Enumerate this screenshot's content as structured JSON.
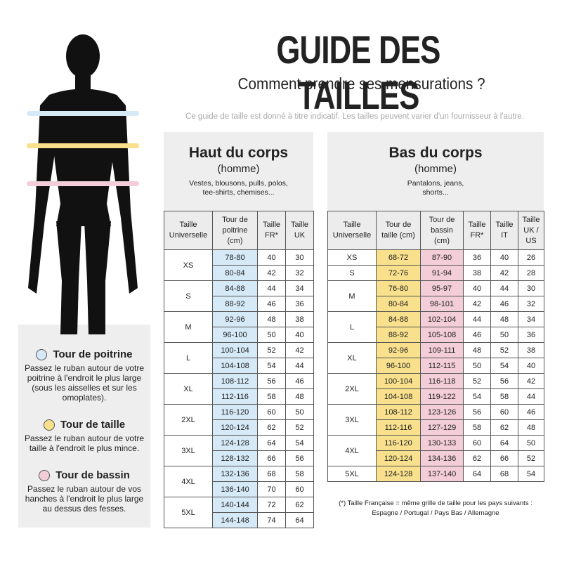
{
  "header": {
    "title": "GUIDE DES TAILLES",
    "subtitle": "Comment prendre ses mensurations ?",
    "note": "Ce guide de taille est donné à titre indicatif. Les tailles peuvent varier d'un fournisseur à l'autre."
  },
  "legend": {
    "items": [
      {
        "label": "Tour de poitrine",
        "text": "Passez le ruban autour de votre poitrine à l'endroit le plus large (sous les aisselles et sur les omoplates)."
      },
      {
        "label": "Tour de taille",
        "text": "Passez le ruban autour de votre taille à l'endroit le plus mince."
      },
      {
        "label": "Tour de bassin",
        "text": "Passez le ruban autour de vos hanches à l'endroit le plus large au dessus des fesses."
      }
    ]
  },
  "tables": [
    {
      "title": "Haut du corps",
      "subtitle": "(homme)",
      "description": "Vestes, blousons, pulls, polos, tee-shirts, chemises...",
      "columns": [
        "Taille Universelle",
        "Tour de poitrine (cm)",
        "Taille FR*",
        "Taille UK"
      ],
      "groups": [
        {
          "size": "XS",
          "rows": [
            [
              "78-80",
              40,
              30
            ],
            [
              "80-84",
              42,
              32
            ]
          ]
        },
        {
          "size": "S",
          "rows": [
            [
              "84-88",
              44,
              34
            ],
            [
              "88-92",
              46,
              36
            ]
          ]
        },
        {
          "size": "M",
          "rows": [
            [
              "92-96",
              48,
              38
            ],
            [
              "96-100",
              50,
              40
            ]
          ]
        },
        {
          "size": "L",
          "rows": [
            [
              "100-104",
              52,
              42
            ],
            [
              "104-108",
              54,
              44
            ]
          ]
        },
        {
          "size": "XL",
          "rows": [
            [
              "108-112",
              56,
              46
            ],
            [
              "112-116",
              58,
              48
            ]
          ]
        },
        {
          "size": "2XL",
          "rows": [
            [
              "116-120",
              60,
              50
            ],
            [
              "120-124",
              62,
              52
            ]
          ]
        },
        {
          "size": "3XL",
          "rows": [
            [
              "124-128",
              64,
              54
            ],
            [
              "128-132",
              66,
              56
            ]
          ]
        },
        {
          "size": "4XL",
          "rows": [
            [
              "132-136",
              68,
              58
            ],
            [
              "136-140",
              70,
              60
            ]
          ]
        },
        {
          "size": "5XL",
          "rows": [
            [
              "140-144",
              72,
              62
            ],
            [
              "144-148",
              74,
              64
            ]
          ]
        }
      ]
    },
    {
      "title": "Bas du corps",
      "subtitle": "(homme)",
      "description": "Pantalons, jeans, shorts...",
      "columns": [
        "Taille Universelle",
        "Tour de taille (cm)",
        "Tour de bassin (cm)",
        "Taille FR*",
        "Taille IT",
        "Taille UK / US"
      ],
      "groups": [
        {
          "size": "XS",
          "rows": [
            [
              "68-72",
              "87-90",
              36,
              40,
              26
            ]
          ]
        },
        {
          "size": "S",
          "rows": [
            [
              "72-76",
              "91-94",
              38,
              42,
              28
            ]
          ]
        },
        {
          "size": "M",
          "rows": [
            [
              "76-80",
              "95-97",
              40,
              44,
              30
            ],
            [
              "80-84",
              "98-101",
              42,
              46,
              32
            ]
          ]
        },
        {
          "size": "L",
          "rows": [
            [
              "84-88",
              "102-104",
              44,
              48,
              34
            ],
            [
              "88-92",
              "105-108",
              46,
              50,
              36
            ]
          ]
        },
        {
          "size": "XL",
          "rows": [
            [
              "92-96",
              "109-111",
              48,
              52,
              38
            ],
            [
              "96-100",
              "112-115",
              50,
              54,
              40
            ]
          ]
        },
        {
          "size": "2XL",
          "rows": [
            [
              "100-104",
              "116-118",
              52,
              56,
              42
            ],
            [
              "104-108",
              "119-122",
              54,
              58,
              44
            ]
          ]
        },
        {
          "size": "3XL",
          "rows": [
            [
              "108-112",
              "123-126",
              56,
              60,
              46
            ],
            [
              "112-116",
              "127-129",
              58,
              62,
              48
            ]
          ]
        },
        {
          "size": "4XL",
          "rows": [
            [
              "116-120",
              "130-133",
              60,
              64,
              50
            ],
            [
              "120-124",
              "134-136",
              62,
              66,
              52
            ]
          ]
        },
        {
          "size": "5XL",
          "rows": [
            [
              "124-128",
              "137-140",
              64,
              68,
              54
            ]
          ]
        }
      ]
    }
  ],
  "footnote": "(*) Taille Française = même grille de taille pour les pays suivants : Espagne / Portugal / Pays Bas / Allemagne"
}
